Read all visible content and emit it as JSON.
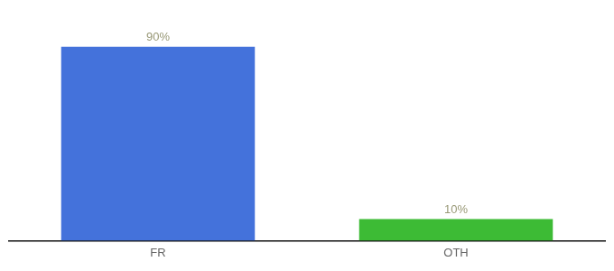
{
  "chart_data": {
    "type": "bar",
    "categories": [
      "FR",
      "OTH"
    ],
    "values": [
      90,
      10
    ],
    "value_labels": [
      "90%",
      "10%"
    ],
    "data_labels": true,
    "colors": [
      "#4472db",
      "#3dbb35"
    ],
    "ylim": [
      0,
      100
    ],
    "grid": false,
    "tick_labels": "x"
  }
}
